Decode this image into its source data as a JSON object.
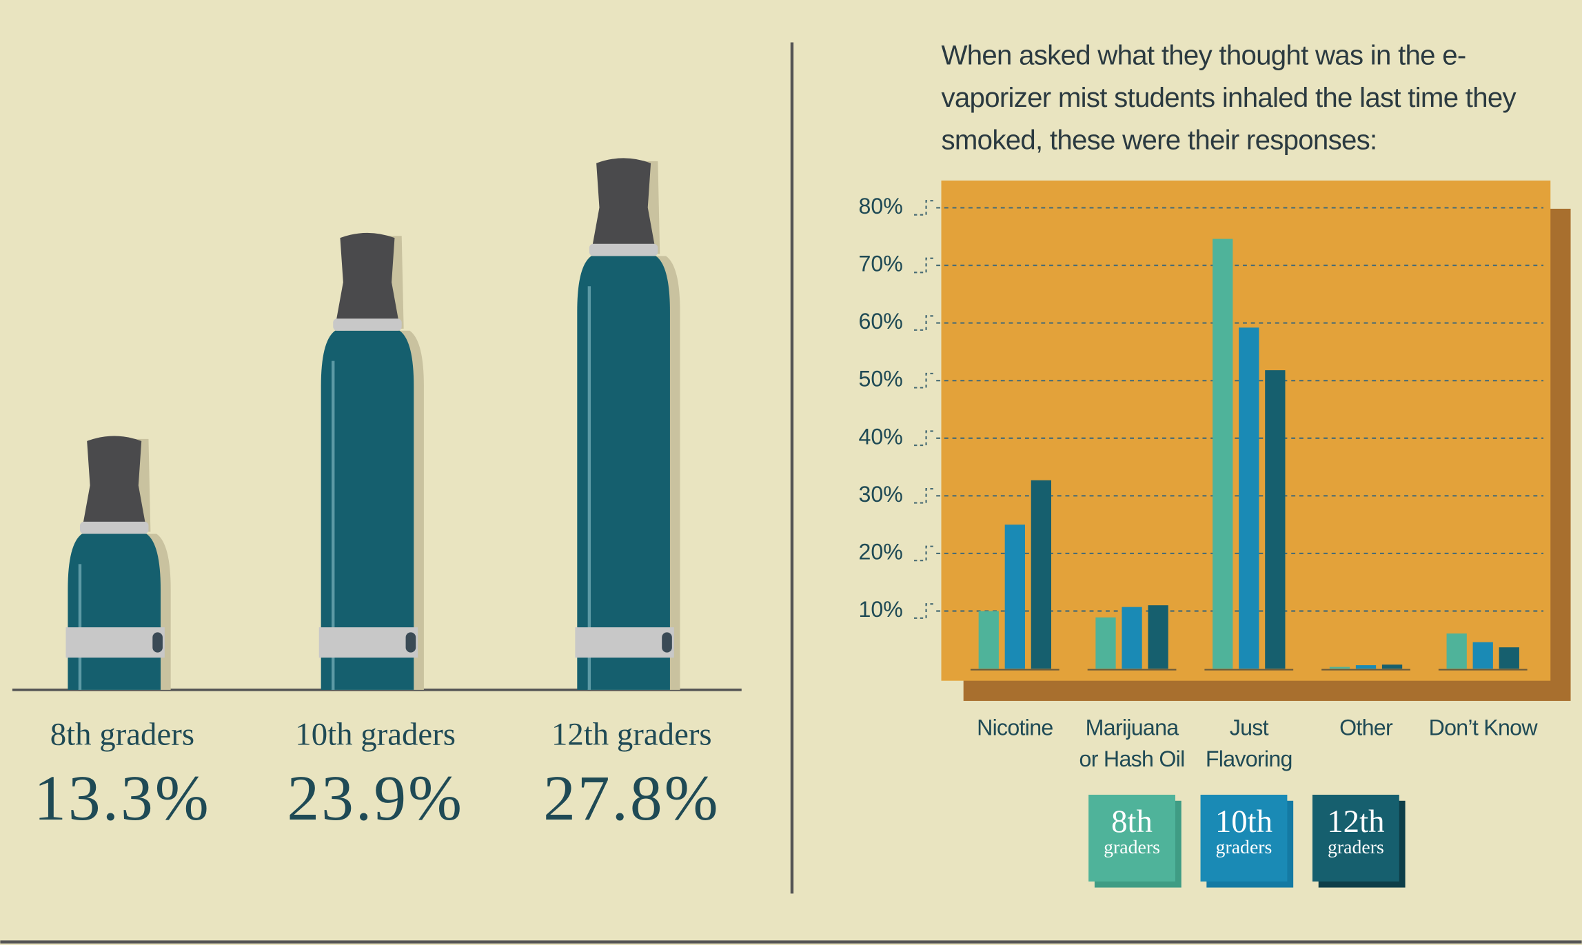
{
  "chart_data": [
    {
      "type": "pictogram",
      "categories": [
        "8th graders",
        "10th graders",
        "12th graders"
      ],
      "values": [
        13.3,
        23.9,
        27.8
      ],
      "value_labels": [
        "13.3%",
        "23.9%",
        "27.8%"
      ],
      "color": "#155f6e"
    },
    {
      "type": "bar",
      "title": "When asked what they thought was in the e-vaporizer mist students inhaled the last time they smoked, these were their responses:",
      "categories": [
        "Nicotine",
        "Marijuana or Hash Oil",
        "Just Flavoring",
        "Other",
        "Don’t Know"
      ],
      "series": [
        {
          "name": "8th graders",
          "color": "#4fb39a",
          "values": [
            10.0,
            8.9,
            74.6,
            0.3,
            6.1
          ]
        },
        {
          "name": "10th graders",
          "color": "#1a8ab5",
          "values": [
            25.0,
            10.7,
            59.2,
            0.6,
            4.6
          ]
        },
        {
          "name": "12th graders",
          "color": "#165f6e",
          "values": [
            32.7,
            11.0,
            51.8,
            0.7,
            3.7
          ]
        }
      ],
      "ylim": [
        0,
        80
      ],
      "yticks": [
        {
          "value": 10,
          "label": "10%"
        },
        {
          "value": 20,
          "label": "20%"
        },
        {
          "value": 30,
          "label": "30%"
        },
        {
          "value": 40,
          "label": "40%"
        },
        {
          "value": 50,
          "label": "50%"
        },
        {
          "value": 60,
          "label": "60%"
        },
        {
          "value": 70,
          "label": "70%"
        },
        {
          "value": 80,
          "label": "80%"
        }
      ],
      "grid": true
    }
  ]
}
